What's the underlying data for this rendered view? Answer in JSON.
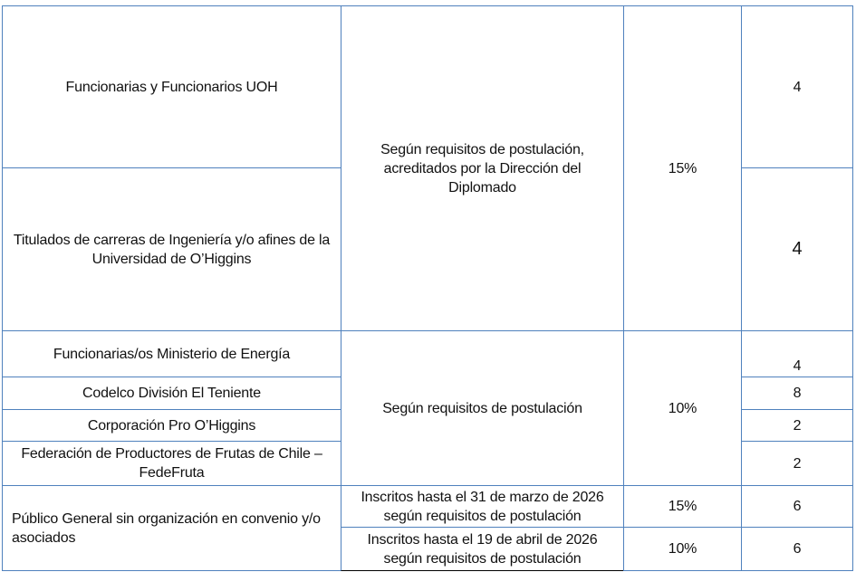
{
  "rows": {
    "groups": [
      "Funcionarias y Funcionarios UOH",
      "Titulados de carreras de Ingeniería y/o afines de la Universidad de O’Higgins",
      "Funcionarias/os Ministerio de Energía",
      "Codelco División El Teniente",
      "Corporación Pro O’Higgins",
      "Federación de Productores de Frutas de Chile – FedeFruta",
      "Público General sin organización en convenio y/o asociados"
    ],
    "requirements": [
      "Según requisitos de postulación, acreditados por la Dirección del Diplomado",
      "Según requisitos de postulación",
      "Inscritos hasta el 31 de marzo de 2026 según requisitos de postulación",
      "Inscritos hasta el 19 de abril de 2026 según requisitos de postulación"
    ],
    "discounts": [
      "15%",
      "10%",
      "15%",
      "10%"
    ],
    "quotas": [
      "4",
      "4",
      "4",
      "8",
      "2",
      "2",
      "6",
      "6"
    ]
  },
  "colors": {
    "border": "#4f81bd"
  }
}
